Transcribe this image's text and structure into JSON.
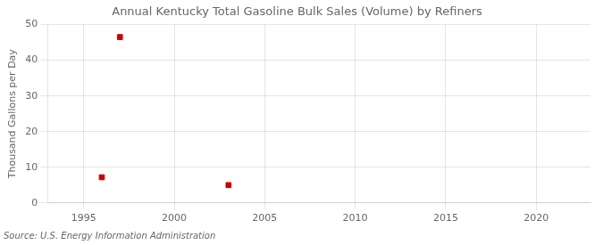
{
  "chart_data": {
    "type": "scatter",
    "title": "Annual Kentucky Total Gasoline Bulk Sales (Volume) by Refiners",
    "y_label": "Thousand Gallons per Day",
    "annotations": [
      "Source: U.S. Energy Information Administration"
    ],
    "x": [
      1996,
      1997,
      2003
    ],
    "values": [
      7.2,
      46.5,
      5.0
    ],
    "color": "#cc0000",
    "marker": "square",
    "xlim": [
      1993,
      2023
    ],
    "ylim": [
      0,
      50
    ],
    "xticks": [
      1995,
      2000,
      2005,
      2010,
      2015,
      2020
    ],
    "yticks": [
      0,
      10,
      20,
      30,
      40,
      50
    ],
    "grid": true
  }
}
